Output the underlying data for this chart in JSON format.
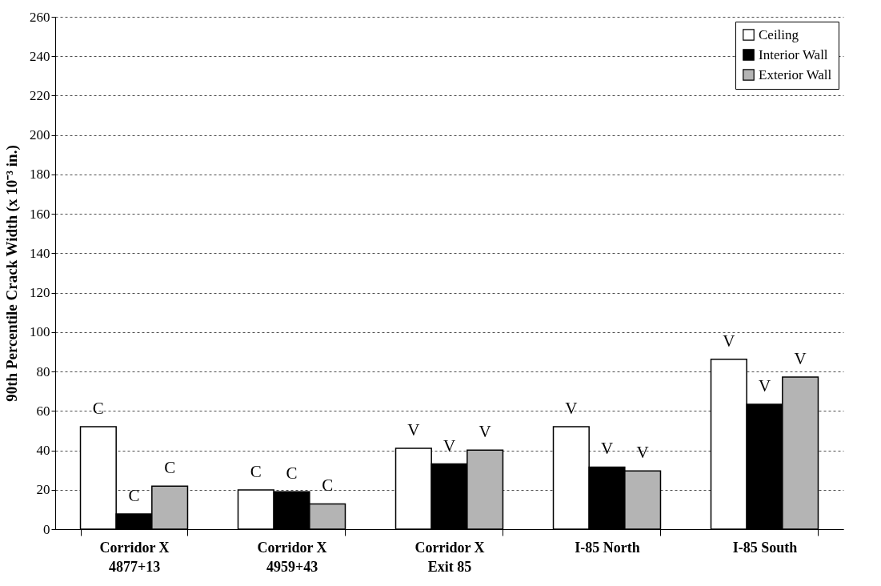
{
  "chart_data": {
    "type": "bar",
    "ylabel": "90th Percentile Crack Width (x 10⁻³ in.)",
    "categories": [
      "Corridor X\n4877+13",
      "Corridor X\n4959+43",
      "Corridor X\nExit 85",
      "I-85 North",
      "I-85 South"
    ],
    "series": [
      {
        "name": "Ceiling",
        "color": "#ffffff",
        "values": [
          52,
          19.9,
          41,
          52,
          86.2
        ],
        "value_labels": [
          "C",
          "C",
          "V",
          "V",
          "V"
        ]
      },
      {
        "name": "Interior Wall",
        "color": "#000000",
        "values": [
          7.7,
          19,
          33.1,
          31.5,
          63.4
        ],
        "value_labels": [
          "C",
          "C",
          "V",
          "V",
          "V"
        ]
      },
      {
        "name": "Exterior Wall",
        "color": "#b4b4b4",
        "values": [
          21.8,
          12.8,
          40.1,
          29.6,
          77.2
        ],
        "value_labels": [
          "C",
          "C",
          "V",
          "V",
          "V"
        ]
      }
    ],
    "ylim": [
      0,
      260
    ],
    "yticks": [
      0,
      20,
      40,
      60,
      80,
      100,
      120,
      140,
      160,
      180,
      200,
      220,
      240,
      260
    ],
    "grid": "y",
    "legend": "top right"
  }
}
